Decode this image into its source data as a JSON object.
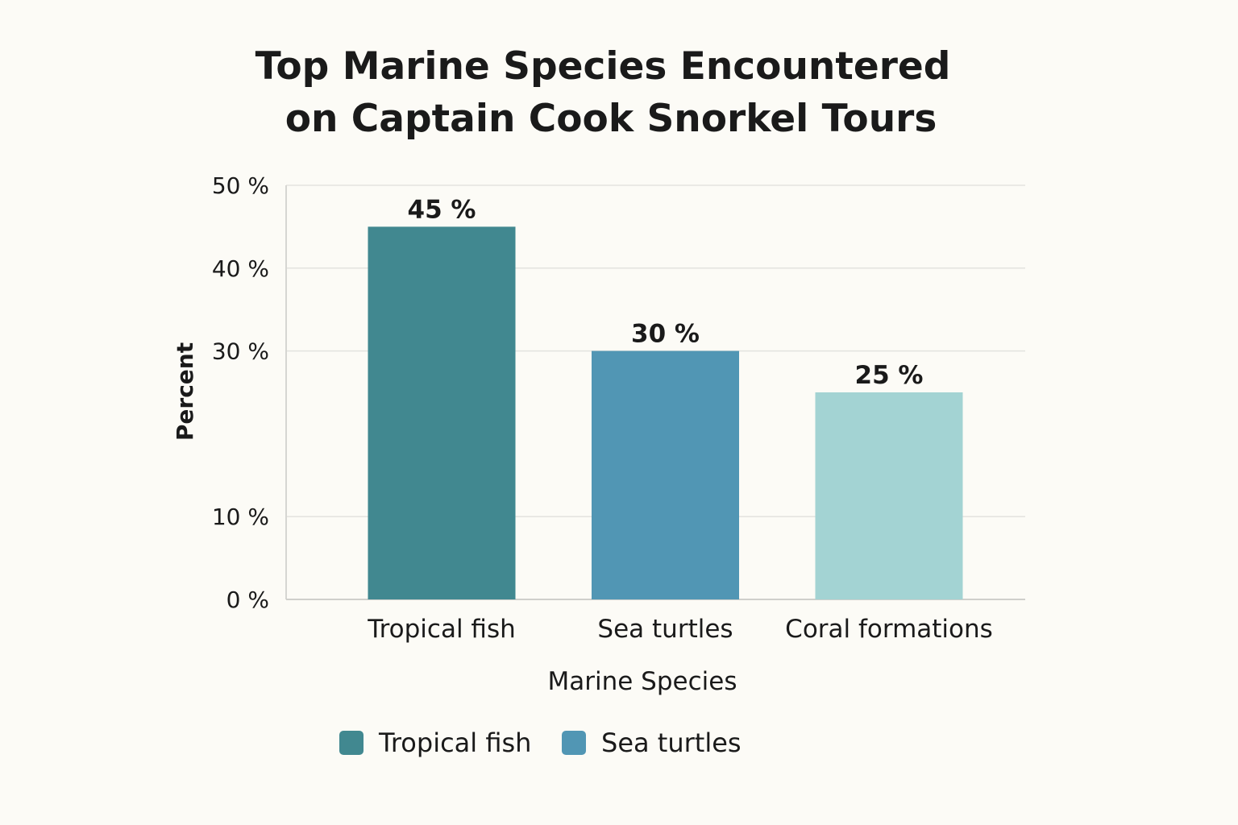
{
  "chart_data": {
    "type": "bar",
    "title_lines": [
      "Top Marine Species Encountered",
      "on Captain Cook Snorkel Tours"
    ],
    "categories": [
      "Tropical fish",
      "Sea turtles",
      "Coral formations"
    ],
    "values": [
      45,
      30,
      25
    ],
    "data_labels": [
      "45 %",
      "30 %",
      "25 %"
    ],
    "bar_colors": [
      "#418890",
      "#5196b4",
      "#a3d3d3"
    ],
    "xlabel": "Marine Species",
    "ylabel": "Percent",
    "yticks": [
      {
        "value": 0,
        "label": "0 %"
      },
      {
        "value": 10,
        "label": "10 %"
      },
      {
        "value": 30,
        "label": "30 %"
      },
      {
        "value": 40,
        "label": "40 %"
      },
      {
        "value": 50,
        "label": "50 %"
      }
    ],
    "ylim": [
      0,
      50
    ],
    "grid": true,
    "legend": {
      "placement": "bottom",
      "entries": [
        {
          "label": "Tropical fish",
          "color": "#418890"
        },
        {
          "label": "Sea turtles",
          "color": "#5196b4"
        }
      ]
    }
  }
}
